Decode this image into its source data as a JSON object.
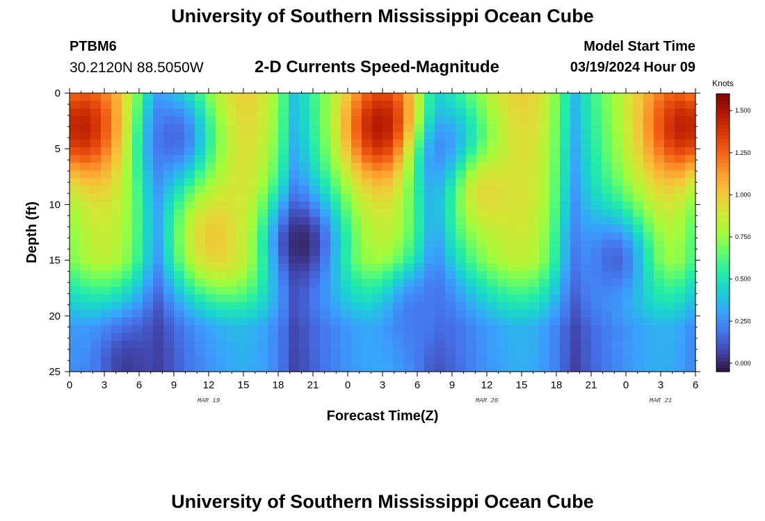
{
  "header": {
    "title": "University of Southern Mississippi Ocean Cube",
    "station_id": "PTBM6",
    "station_coords": "30.2120N  88.5050W",
    "product_title": "2-D Currents Speed-Magnitude",
    "model_start_label": "Model Start Time",
    "model_start_value": "03/19/2024 Hour 09"
  },
  "footer": {
    "title": "University of Southern Mississippi Ocean Cube"
  },
  "chart_data": {
    "type": "heatmap",
    "xlabel": "Forecast Time(Z)",
    "ylabel": "Depth (ft)",
    "x_tick_labels": [
      "0",
      "3",
      "6",
      "9",
      "12",
      "15",
      "18",
      "21",
      "0",
      "3",
      "6",
      "9",
      "12",
      "15",
      "18",
      "21",
      "0",
      "3",
      "6"
    ],
    "x_range_hours": [
      0,
      54
    ],
    "date_labels": [
      {
        "label": "MAR 19",
        "hour": 12
      },
      {
        "label": "MAR 20",
        "hour": 36
      },
      {
        "label": "MAR 21",
        "hour": 51
      }
    ],
    "y_ticks": [
      0,
      5,
      10,
      15,
      20,
      25
    ],
    "y_range_ft": [
      0,
      25
    ],
    "y_inverted": true,
    "colorbar": {
      "unit": "Knots",
      "range": [
        -0.05,
        1.6
      ],
      "ticks": [
        "0.000",
        "0.250",
        "0.500",
        "0.750",
        "1.000",
        "1.250",
        "1.500"
      ],
      "colors": [
        "#30123b",
        "#4145ab",
        "#4675ed",
        "#39a2fc",
        "#1bcfd4",
        "#24eca6",
        "#61fc6c",
        "#a4fc3b",
        "#d1e834",
        "#f3c63a",
        "#fe9b2d",
        "#f36315",
        "#d93806",
        "#b11901",
        "#7a0403"
      ]
    },
    "speed_features_knots": [
      {
        "name": "near-bed minimum",
        "hour": 5,
        "depth_ft": 24.5,
        "speed": 0.05
      },
      {
        "name": "upper minimum",
        "hour": 9,
        "depth_ft": 4,
        "speed": 0.15
      },
      {
        "name": "surface maximum",
        "hour": 1,
        "depth_ft": 3,
        "speed": 1.45
      },
      {
        "name": "mid-depth maximum",
        "hour": 12.5,
        "depth_ft": 13,
        "speed": 1.0
      },
      {
        "name": "deep minimum",
        "hour": 20,
        "depth_ft": 13.5,
        "speed": 0.0
      },
      {
        "name": "surface maximum",
        "hour": 27,
        "depth_ft": 3,
        "speed": 1.5
      },
      {
        "name": "mid-depth minimum",
        "hour": 30,
        "depth_ft": 20,
        "speed": 0.2
      },
      {
        "name": "upper minimum",
        "hour": 33,
        "depth_ft": 6,
        "speed": 0.15
      },
      {
        "name": "mid-depth maximum",
        "hour": 36,
        "depth_ft": 9,
        "speed": 0.95
      },
      {
        "name": "deep minimum",
        "hour": 47,
        "depth_ft": 15,
        "speed": 0.15
      },
      {
        "name": "surface maximum",
        "hour": 53,
        "depth_ft": 3,
        "speed": 1.45
      }
    ]
  }
}
